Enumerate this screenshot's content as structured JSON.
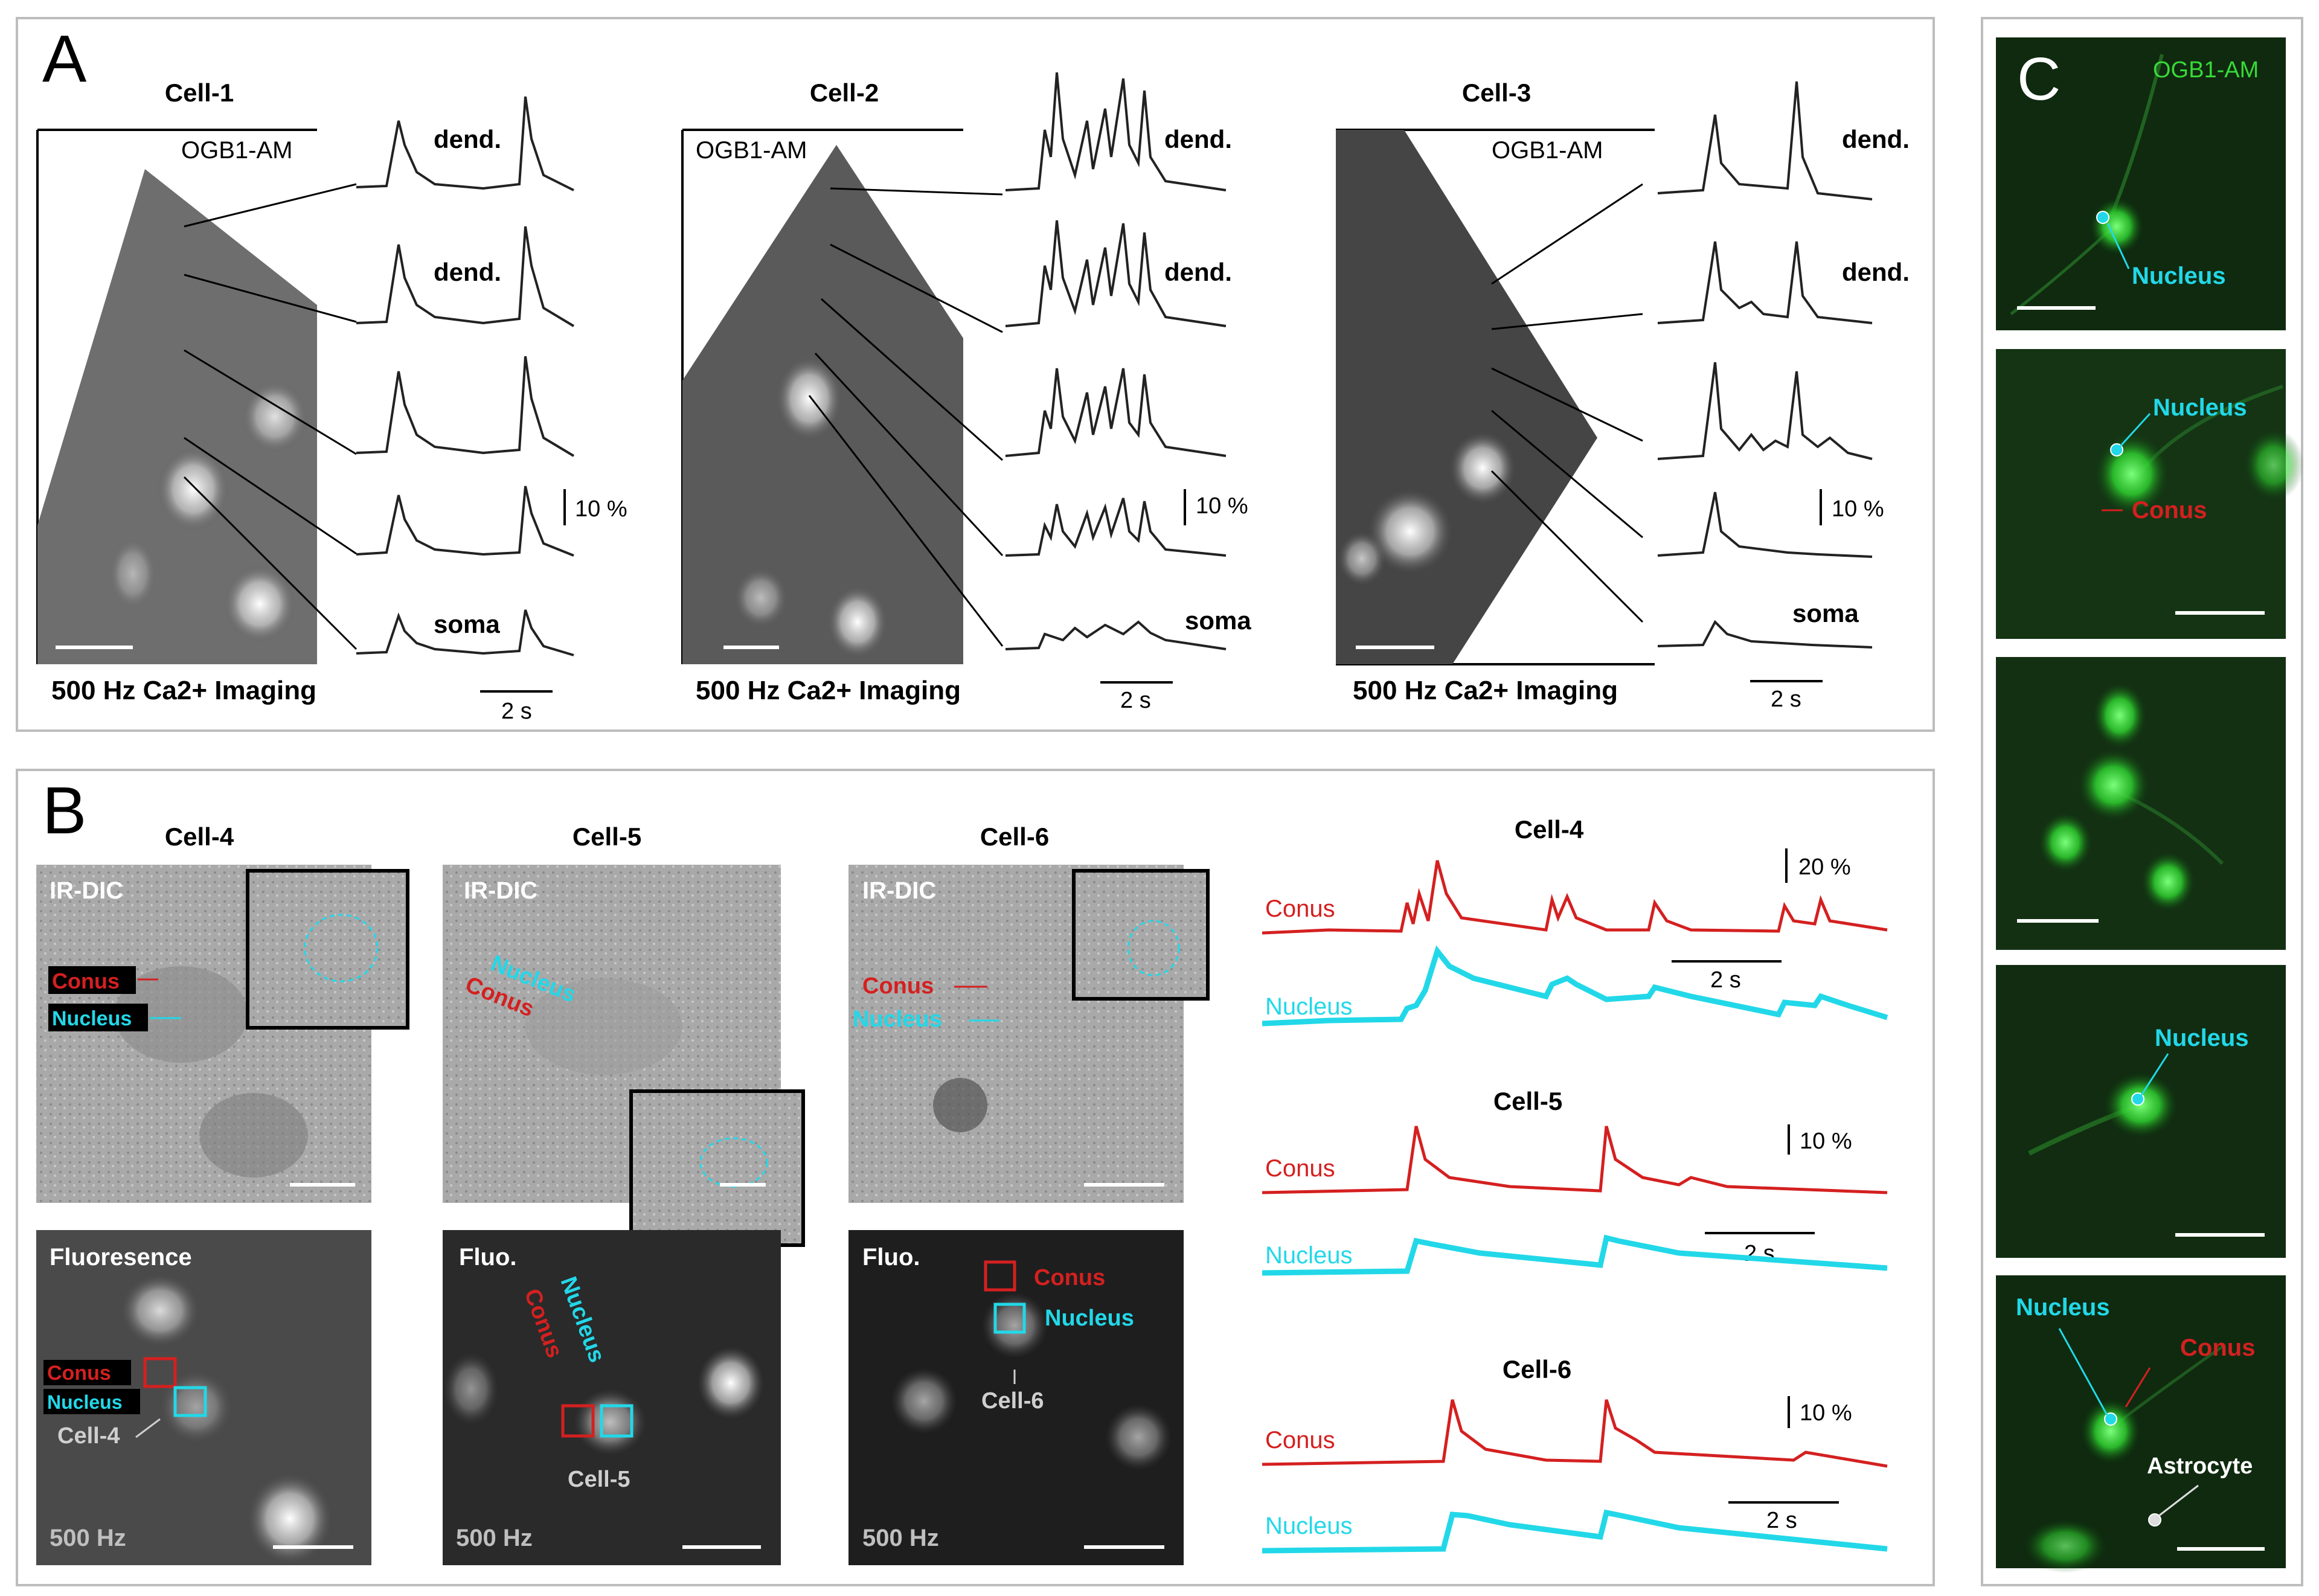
{
  "panels": {
    "A": {
      "letter": "A",
      "dye": "OGB1-AM",
      "imaging": "500 Hz Ca2+ Imaging",
      "scale_time": "2 s",
      "scale_amp": "10 %",
      "trace_labels": [
        "dend.",
        "dend.",
        "",
        "",
        "soma"
      ],
      "cells": [
        {
          "title": "Cell-1",
          "dye_label": "OGB1-AM",
          "imaging_label": "500 Hz Ca2+ Imaging",
          "dend1": "dend.",
          "dend2": "dend.",
          "soma": "soma",
          "amp": "10 %",
          "time": "2 s"
        },
        {
          "title": "Cell-2",
          "dye_label": "OGB1-AM",
          "imaging_label": "500 Hz Ca2+ Imaging",
          "dend1": "dend.",
          "dend2": "dend.",
          "soma": "soma",
          "amp": "10 %",
          "time": "2 s"
        },
        {
          "title": "Cell-3",
          "dye_label": "OGB1-AM",
          "imaging_label": "500 Hz Ca2+ Imaging",
          "dend1": "dend.",
          "dend2": "dend.",
          "soma": "soma",
          "amp": "10 %",
          "time": "2 s"
        }
      ]
    },
    "B": {
      "letter": "B",
      "cells": [
        {
          "title": "Cell-4",
          "dic": "IR-DIC",
          "fluo": "Fluoresence",
          "conus": "Conus",
          "nucleus": "Nucleus",
          "cell_tag": "Cell-4",
          "rate": "500 Hz"
        },
        {
          "title": "Cell-5",
          "dic": "IR-DIC",
          "fluo": "Fluo.",
          "conus": "Conus",
          "nucleus": "Nucleus",
          "cell_tag": "Cell-5",
          "rate": "500 Hz"
        },
        {
          "title": "Cell-6",
          "dic": "IR-DIC",
          "fluo": "Fluo.",
          "conus": "Conus",
          "nucleus": "Nucleus",
          "cell_tag": "Cell-6",
          "rate": "500 Hz"
        }
      ],
      "traces": [
        {
          "title": "Cell-4",
          "amp": "20 %",
          "time": "2 s",
          "conus": "Conus",
          "nucleus": "Nucleus"
        },
        {
          "title": "Cell-5",
          "amp": "10 %",
          "time": "2 s",
          "conus": "Conus",
          "nucleus": "Nucleus"
        },
        {
          "title": "Cell-6",
          "amp": "10 %",
          "time": "2 s",
          "conus": "Conus",
          "nucleus": "Nucleus"
        }
      ]
    },
    "C": {
      "letter": "C",
      "dye": "OGB1-AM",
      "nucleus": "Nucleus",
      "conus": "Conus",
      "astrocyte": "Astrocyte"
    }
  },
  "colors": {
    "conus": "#d42020",
    "nucleus": "#22d8e8",
    "green": "#2fbf2f",
    "trace": "#222222"
  }
}
